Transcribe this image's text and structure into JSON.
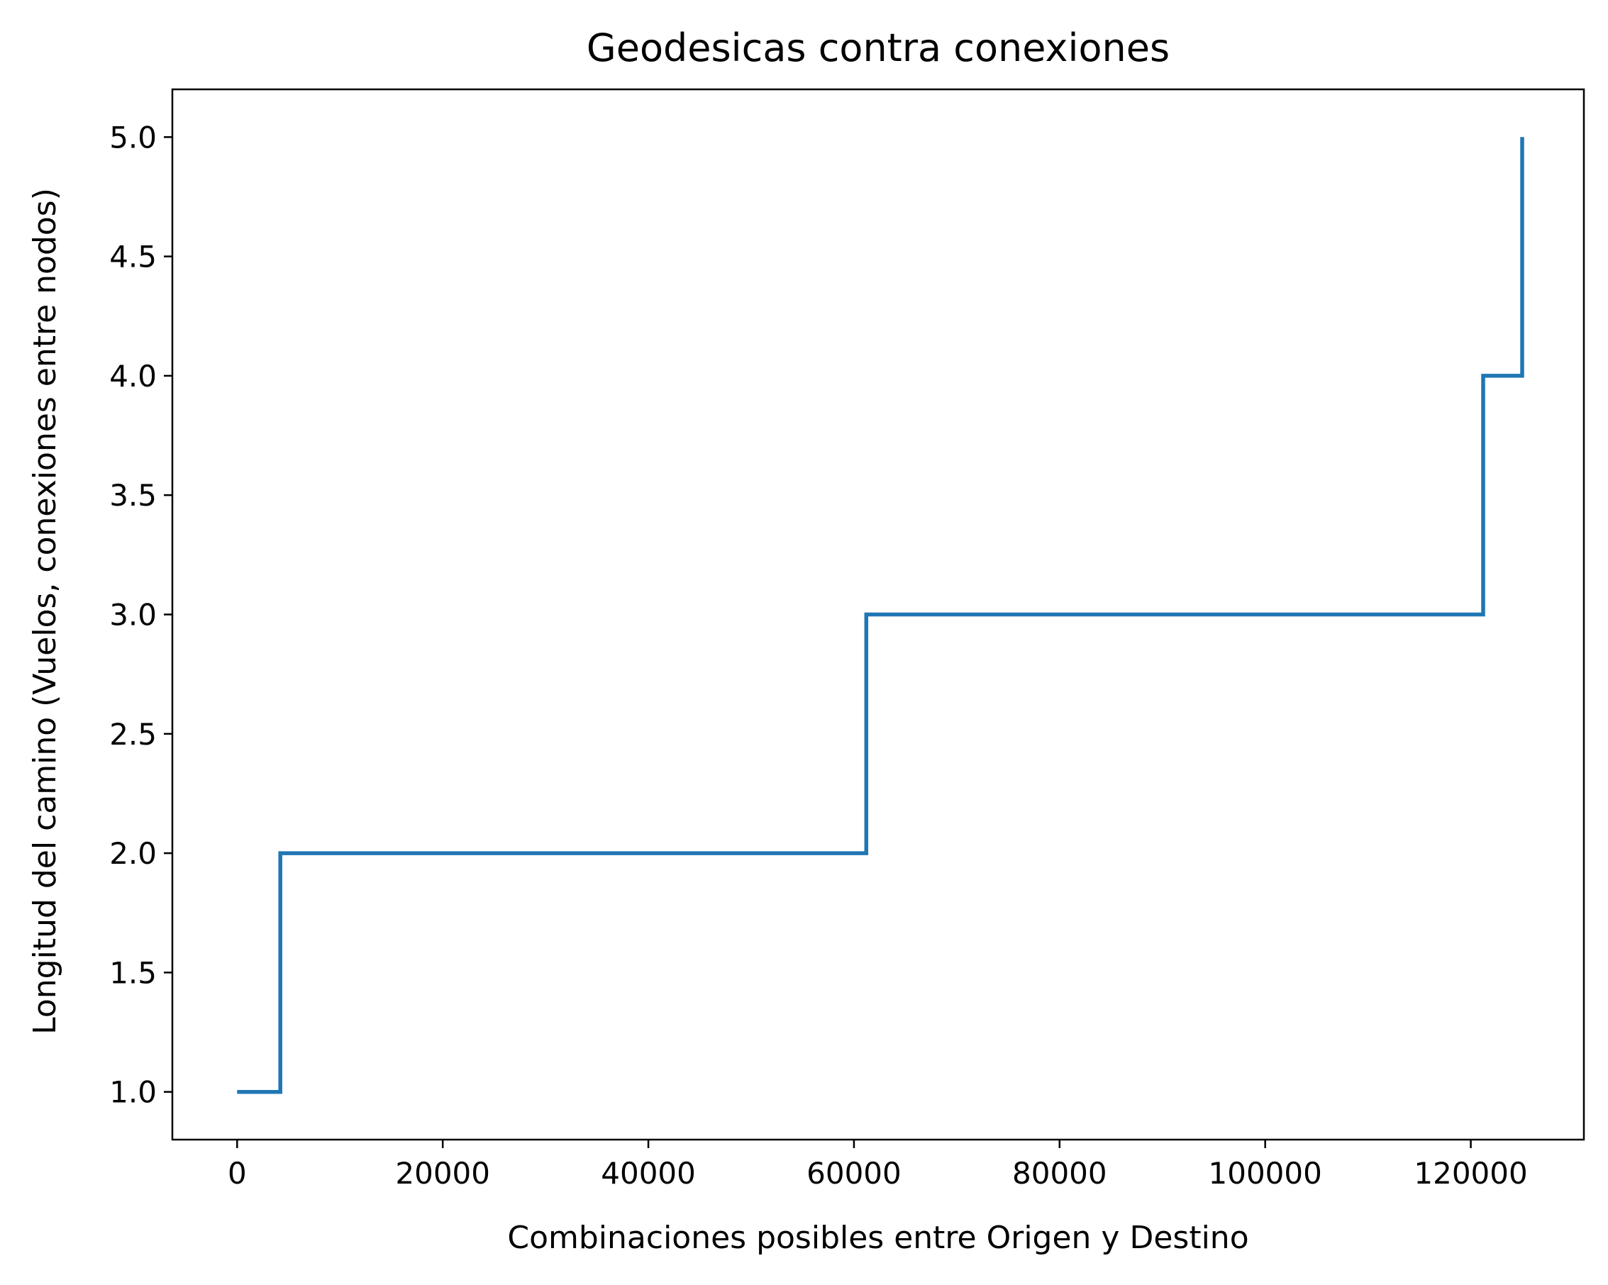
{
  "chart_data": {
    "type": "line",
    "step": true,
    "title": "Geodesicas contra conexiones",
    "xlabel": "Combinaciones posibles entre Origen y Destino",
    "ylabel": "Longitud del camino (Vuelos, conexiones entre nodos)",
    "xlim": [
      -6300,
      131000
    ],
    "ylim": [
      0.8,
      5.2
    ],
    "xticks": [
      0,
      20000,
      40000,
      60000,
      80000,
      100000,
      120000
    ],
    "xtick_labels": [
      "0",
      "20000",
      "40000",
      "60000",
      "80000",
      "100000",
      "120000"
    ],
    "yticks": [
      1.0,
      1.5,
      2.0,
      2.5,
      3.0,
      3.5,
      4.0,
      4.5,
      5.0
    ],
    "ytick_labels": [
      "1.0",
      "1.5",
      "2.0",
      "2.5",
      "3.0",
      "3.5",
      "4.0",
      "4.5",
      "5.0"
    ],
    "grid": false,
    "series": [
      {
        "color": "#1f77b4",
        "x": [
          0,
          4200,
          4200,
          61200,
          61200,
          121200,
          121200,
          125000,
          125000
        ],
        "y": [
          1,
          1,
          2,
          2,
          3,
          3,
          4,
          4,
          5
        ]
      }
    ]
  }
}
